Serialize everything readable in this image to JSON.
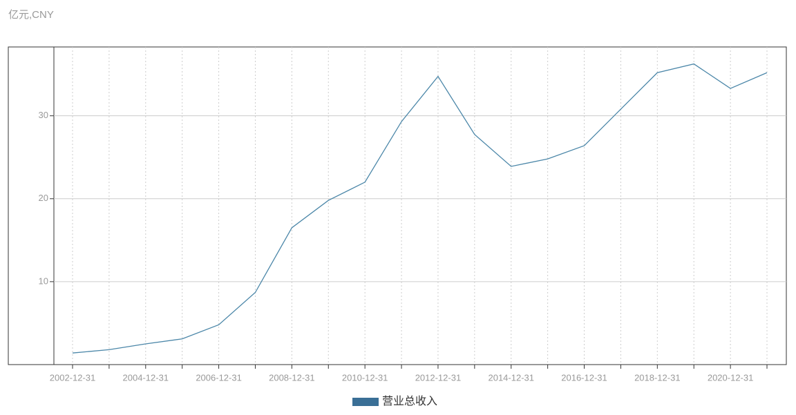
{
  "chart_data": {
    "type": "line",
    "y_axis_label": "亿元,CNY",
    "categories": [
      "2002-12-31",
      null,
      "2004-12-31",
      null,
      "2006-12-31",
      null,
      "2008-12-31",
      null,
      "2010-12-31",
      null,
      "2012-12-31",
      null,
      "2014-12-31",
      null,
      "2016-12-31",
      null,
      "2018-12-31",
      null,
      "2020-12-31",
      null
    ],
    "series": [
      {
        "name": "营业总收入",
        "color": "#4a86a8",
        "legend_color": "#3a6f96",
        "values": [
          1.4,
          1.8,
          2.5,
          3.1,
          4.8,
          8.7,
          16.5,
          19.8,
          22.0,
          29.3,
          34.75,
          27.75,
          23.9,
          24.8,
          26.4,
          30.8,
          35.2,
          36.25,
          33.3,
          35.2
        ]
      }
    ],
    "ylim": [
      0,
      38.3
    ],
    "yticks": [
      10,
      20,
      30
    ],
    "grid": true
  }
}
